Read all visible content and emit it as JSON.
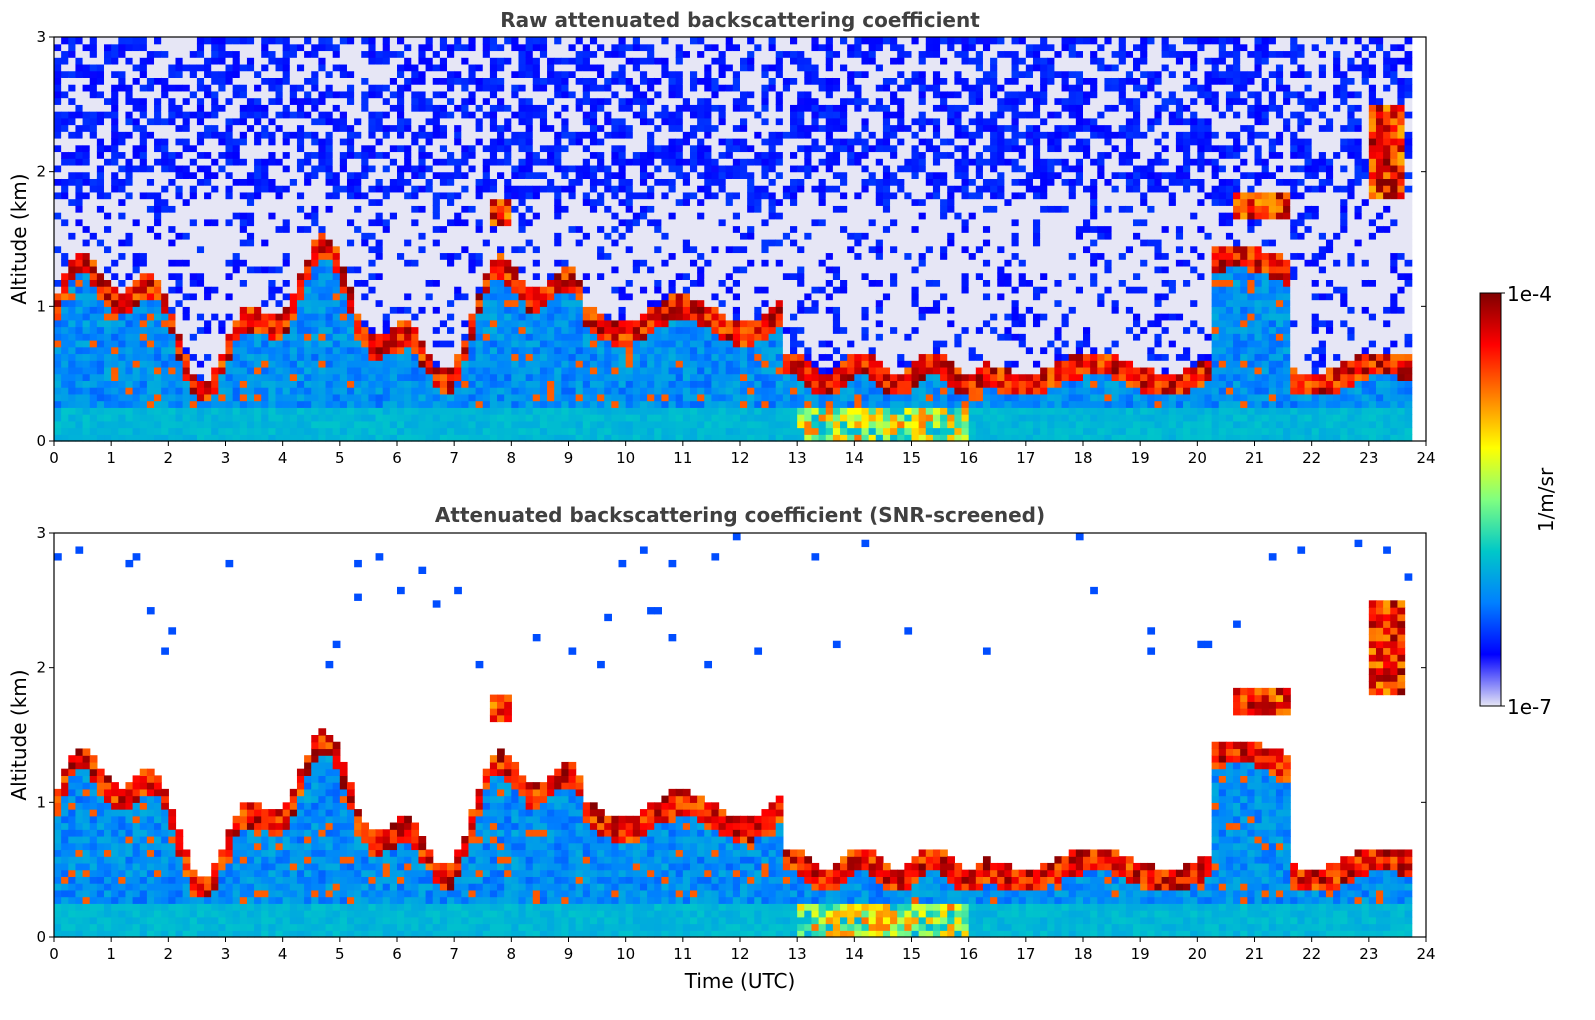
{
  "chart_data": {
    "type": "heatmap",
    "shared_colorbar": {
      "label": "1/m/sr",
      "min_label": "1e-7",
      "max_label": "1e-4",
      "range": [
        1e-07,
        0.0001
      ],
      "scale": "log",
      "colormap": [
        "#e6e6f5",
        "#0000ff",
        "#0080ff",
        "#00c8c8",
        "#80ff80",
        "#ffff00",
        "#ff8000",
        "#ff0000",
        "#800000"
      ]
    },
    "panels": [
      {
        "id": "raw",
        "title": "Raw attenuated backscattering coefficient",
        "xlabel": "",
        "ylabel": "Altitude (km)",
        "xlim": [
          0,
          24
        ],
        "ylim": [
          0,
          3
        ],
        "xticks": [
          "0",
          "1",
          "2",
          "3",
          "4",
          "5",
          "6",
          "7",
          "8",
          "9",
          "10",
          "11",
          "12",
          "13",
          "14",
          "15",
          "16",
          "17",
          "18",
          "19",
          "20",
          "21",
          "22",
          "23",
          "24"
        ],
        "yticks": [
          "0",
          "1",
          "2",
          "3"
        ],
        "data_end_hour": 23.75
      },
      {
        "id": "screened",
        "title": "Attenuated backscattering coefficient (SNR-screened)",
        "xlabel": "Time (UTC)",
        "ylabel": "Altitude (km)",
        "xlim": [
          0,
          24
        ],
        "ylim": [
          0,
          3
        ],
        "xticks": [
          "0",
          "1",
          "2",
          "3",
          "4",
          "5",
          "6",
          "7",
          "8",
          "9",
          "10",
          "11",
          "12",
          "13",
          "14",
          "15",
          "16",
          "17",
          "18",
          "19",
          "20",
          "21",
          "22",
          "23",
          "24"
        ],
        "yticks": [
          "0",
          "1",
          "2",
          "3"
        ],
        "data_end_hour": 23.75
      }
    ]
  }
}
